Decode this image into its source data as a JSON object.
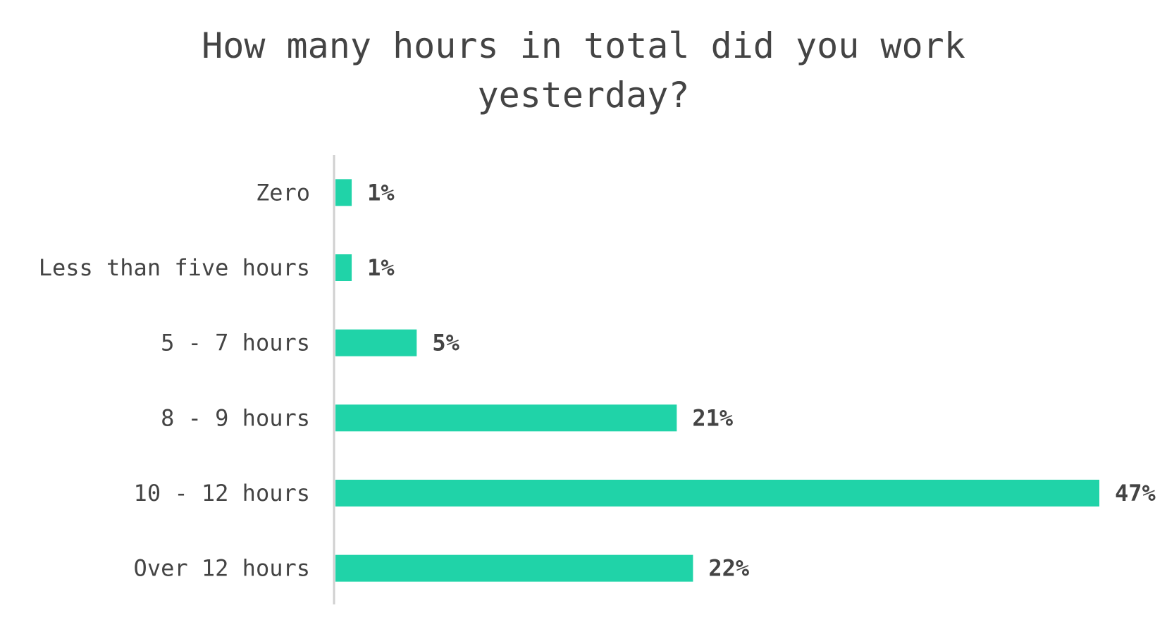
{
  "chart_data": {
    "type": "bar",
    "orientation": "horizontal",
    "title": "How many hours in total did you work yesterday?",
    "categories": [
      "Zero",
      "Less than five hours",
      "5 - 7 hours",
      "8 - 9 hours",
      "10 - 12 hours",
      "Over 12 hours"
    ],
    "values": [
      1,
      1,
      5,
      21,
      47,
      22
    ],
    "value_labels": [
      "1%",
      "1%",
      "5%",
      "21%",
      "47%",
      "22%"
    ],
    "color": "#20d3a8"
  }
}
